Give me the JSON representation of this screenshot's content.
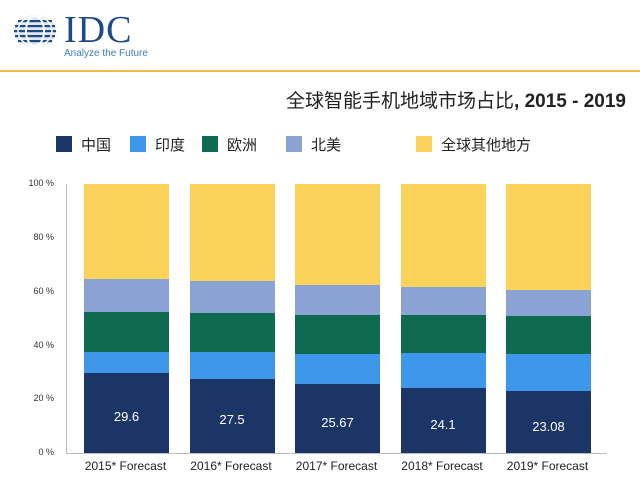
{
  "header": {
    "logo_text": "IDC",
    "tagline": "Analyze the Future",
    "logo_icon": "globe-icon"
  },
  "colors": {
    "china": "#1b3566",
    "india": "#3e97ea",
    "europe": "#0e6b50",
    "north_america": "#8aa3d4",
    "rest_of_world": "#fbd35a",
    "divider": "#f3b94d",
    "brand": "#1e4a86"
  },
  "chart_data": {
    "type": "bar",
    "stacked": true,
    "title": "全球智能手机地域市场占比，2015 - 2019",
    "title_main": "全球智能手机地域市场占比",
    "title_years": ", 2015 - 2019",
    "xlabel": "",
    "ylabel": "",
    "ylim": [
      0,
      100
    ],
    "yticks": [
      "0 %",
      "20 %",
      "40 %",
      "60 %",
      "80 %",
      "100 %"
    ],
    "grid": false,
    "legend_position": "top",
    "categories": [
      "2015* Forecast",
      "2016* Forecast",
      "2017* Forecast",
      "2018* Forecast",
      "2019* Forecast"
    ],
    "series": [
      {
        "name": "中国",
        "color": "#1b3566",
        "values": [
          29.6,
          27.5,
          25.67,
          24.1,
          23.08
        ],
        "labels": [
          "29.6",
          "27.5",
          "25.67",
          "24.1",
          "23.08"
        ]
      },
      {
        "name": "印度",
        "color": "#3e97ea",
        "values": [
          7.9,
          10.0,
          11.3,
          12.9,
          13.9
        ]
      },
      {
        "name": "欧洲",
        "color": "#0e6b50",
        "values": [
          15.0,
          14.5,
          14.5,
          14.3,
          14.0
        ]
      },
      {
        "name": "北美",
        "color": "#8aa3d4",
        "values": [
          12.2,
          12.0,
          11.0,
          10.4,
          9.6
        ]
      },
      {
        "name": "全球其他地方",
        "color": "#fbd35a",
        "values": [
          35.3,
          36.0,
          37.53,
          38.3,
          39.42
        ]
      }
    ]
  }
}
